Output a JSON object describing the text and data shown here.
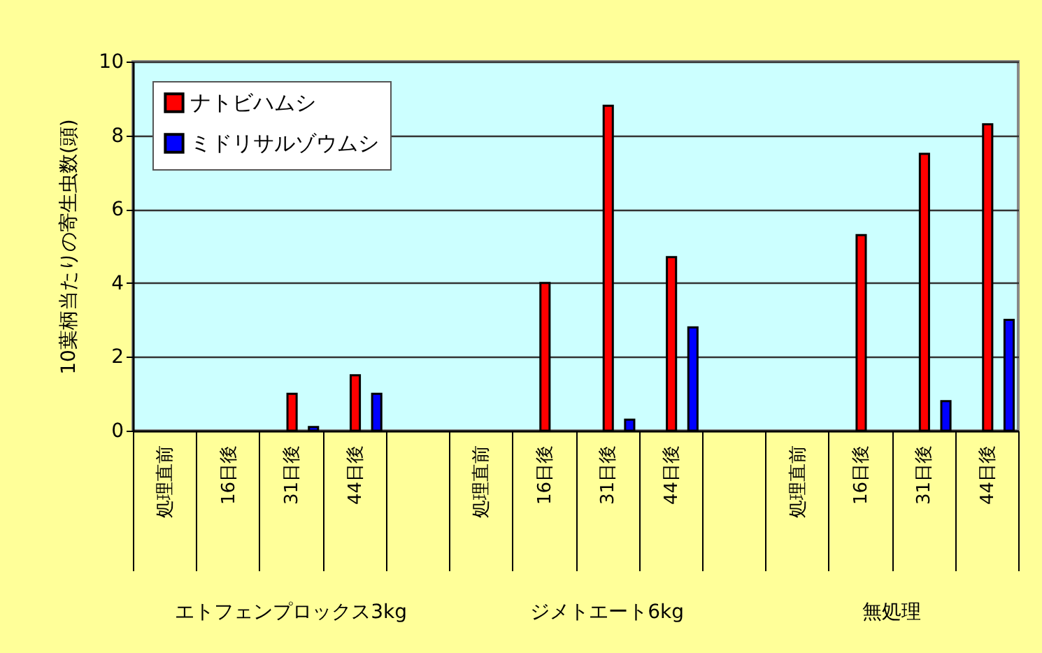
{
  "chart_data": {
    "type": "bar",
    "categories": [
      "処理直前",
      "16日後",
      "31日後",
      "44日後",
      null,
      "処理直前",
      "16日後",
      "31日後",
      "44日後",
      null,
      "処理直前",
      "16日後",
      "31日後",
      "44日後"
    ],
    "series": [
      {
        "name": "ナトビハムシ",
        "color": "#ff0000",
        "values": [
          null,
          null,
          1.0,
          1.5,
          null,
          null,
          4.0,
          8.8,
          4.7,
          null,
          null,
          5.3,
          7.5,
          8.3
        ]
      },
      {
        "name": "ミドリサルゾウムシ",
        "color": "#0000ff",
        "values": [
          null,
          null,
          0.1,
          1.0,
          null,
          null,
          null,
          0.3,
          2.8,
          null,
          null,
          null,
          0.8,
          3.0
        ]
      }
    ],
    "ylabel": "10葉柄当たりの寄生虫数(頭)",
    "annotations": [
      "エトフェンプロックス3kg",
      "ジメトエート6kg",
      "無処理"
    ],
    "ylim": [
      0,
      10
    ],
    "yticks": [
      0,
      2,
      4,
      6,
      8,
      10
    ],
    "grid": "y",
    "legend": "top left"
  }
}
